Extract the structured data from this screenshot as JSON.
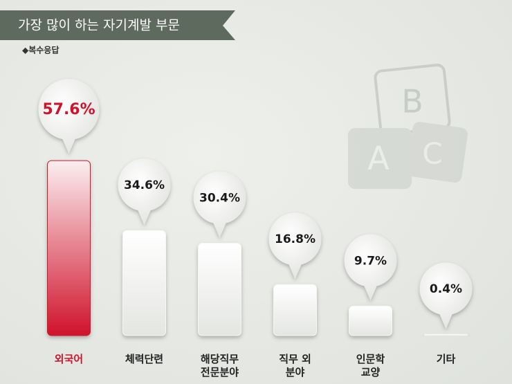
{
  "chart_data": {
    "type": "bar",
    "title": "가장 많이 하는 자기계발 부문",
    "subtitle": "◆복수응답",
    "categories": [
      "외국어",
      "체력단련",
      "해당직무\n전문분야",
      "직무 외\n분야",
      "인문학\n교양",
      "기타"
    ],
    "values": [
      57.6,
      34.6,
      30.4,
      16.8,
      9.7,
      0.4
    ],
    "value_labels": [
      "57.6%",
      "34.6%",
      "30.4%",
      "16.8%",
      "9.7%",
      "0.4%"
    ],
    "color": "#f7f7f5",
    "highlight_color": "#d0132b",
    "highlight_index": 0,
    "decoration_letters": [
      "B",
      "A",
      "C"
    ]
  }
}
